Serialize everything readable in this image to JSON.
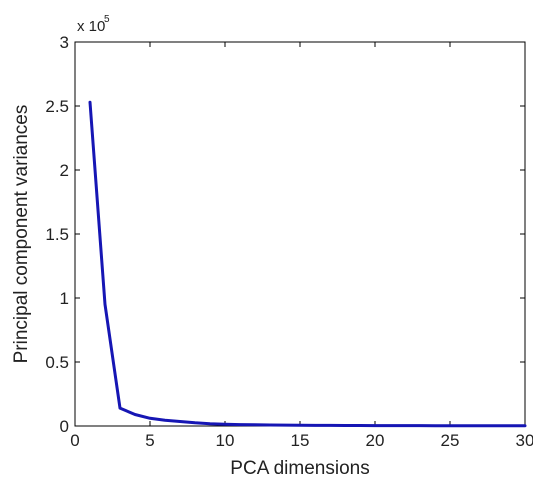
{
  "chart_data": {
    "type": "line",
    "xlabel": "PCA dimensions",
    "ylabel": "Principal component variances",
    "y_multiplier_base": "x 10",
    "y_multiplier_exponent": "5",
    "xlim": [
      0,
      30
    ],
    "ylim": [
      0,
      3
    ],
    "x_ticks": [
      0,
      5,
      10,
      15,
      20,
      25,
      30
    ],
    "x_tick_labels": [
      "0",
      "5",
      "10",
      "15",
      "20",
      "25",
      "30"
    ],
    "y_ticks": [
      0,
      0.5,
      1,
      1.5,
      2,
      2.5,
      3
    ],
    "y_tick_labels": [
      "0",
      "0.5",
      "1",
      "1.5",
      "2",
      "2.5",
      "3"
    ],
    "grid": false,
    "series": [
      {
        "color": "#1616b4",
        "x": [
          1,
          2,
          3,
          4,
          5,
          6,
          7,
          8,
          9,
          10,
          11,
          12,
          13,
          14,
          15,
          16,
          17,
          18,
          19,
          20,
          21,
          22,
          23,
          24,
          25,
          26,
          27,
          28,
          29,
          30
        ],
        "y": [
          2.53,
          0.95,
          0.14,
          0.09,
          0.06,
          0.045,
          0.035,
          0.025,
          0.018,
          0.014,
          0.011,
          0.009,
          0.008,
          0.007,
          0.006,
          0.005,
          0.005,
          0.004,
          0.004,
          0.003,
          0.003,
          0.003,
          0.003,
          0.002,
          0.002,
          0.002,
          0.002,
          0.002,
          0.002,
          0.002
        ]
      }
    ]
  }
}
